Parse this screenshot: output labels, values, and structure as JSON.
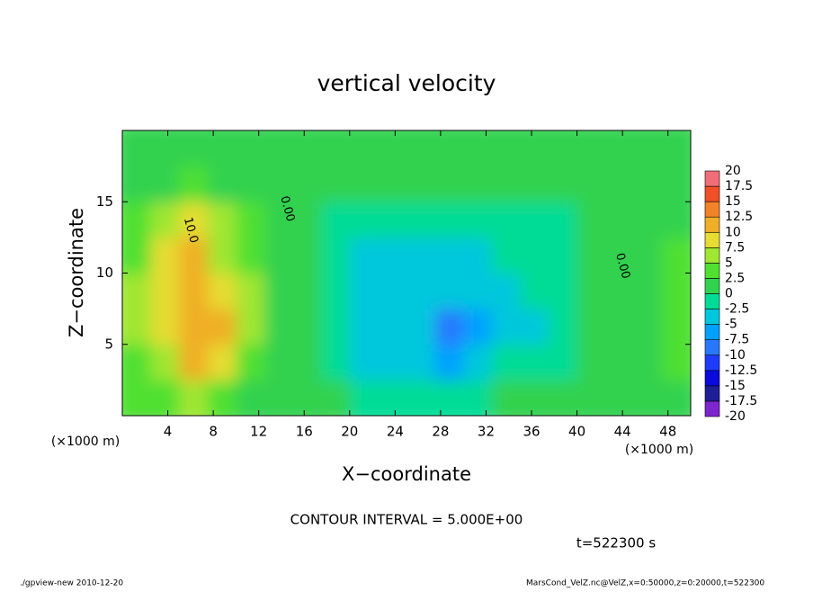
{
  "chart_data": {
    "type": "heatmap",
    "title": "vertical velocity",
    "xlabel": "X−coordinate",
    "ylabel": "Z−coordinate",
    "xunit": "(×1000 m)",
    "yunit": "(×1000 m)",
    "xlim": [
      0,
      50
    ],
    "ylim": [
      0,
      20
    ],
    "xticks": [
      4,
      8,
      12,
      16,
      20,
      24,
      28,
      32,
      36,
      40,
      44,
      48
    ],
    "yticks": [
      5,
      10,
      15
    ],
    "x": [
      1.25,
      3.75,
      6.25,
      8.75,
      11.25,
      13.75,
      16.25,
      18.75,
      21.25,
      23.75,
      26.25,
      28.75,
      31.25,
      33.75,
      36.25,
      38.75,
      41.25,
      43.75,
      46.25,
      48.75
    ],
    "y": [
      1.25,
      3.75,
      6.25,
      8.75,
      11.25,
      13.75,
      16.25,
      18.75
    ],
    "values": [
      [
        3,
        4,
        5,
        4,
        2,
        1,
        0,
        0,
        -1,
        -1,
        -1,
        -2,
        -1,
        0,
        0,
        0,
        1,
        0,
        1,
        1
      ],
      [
        4,
        7,
        10,
        8,
        4,
        2,
        0,
        -1,
        -3,
        -3,
        -3,
        -6,
        -4,
        -2,
        -2,
        -1,
        0,
        0,
        1,
        3
      ],
      [
        6,
        9,
        12,
        10,
        5,
        2,
        0,
        -2,
        -5,
        -4,
        -4,
        -9,
        -6,
        -3,
        -3,
        -2,
        0,
        0,
        2,
        3
      ],
      [
        5,
        8,
        12,
        9,
        5,
        2,
        0,
        -2,
        -5,
        -4,
        -3,
        -5,
        -4,
        -3,
        -2,
        -1,
        0,
        0,
        2,
        3
      ],
      [
        4,
        9,
        12,
        7,
        4,
        2,
        0,
        -2,
        -4,
        -3,
        -3,
        -3,
        -3,
        -2,
        -2,
        -1,
        0,
        0,
        1,
        3
      ],
      [
        3,
        6,
        8,
        5,
        3,
        1,
        0,
        -1,
        -2,
        -2,
        -1,
        -1,
        -1,
        -1,
        -2,
        -1,
        0,
        0,
        0,
        1
      ],
      [
        1,
        2,
        3,
        2,
        1,
        0,
        0,
        0,
        0,
        0,
        0,
        0,
        0,
        0,
        0,
        0,
        0,
        0,
        0,
        0
      ],
      [
        0,
        0,
        0,
        0,
        0,
        0,
        0,
        0,
        0,
        0,
        0,
        0,
        0,
        0,
        0,
        0,
        0,
        0,
        0,
        0
      ]
    ],
    "levels": [
      -20,
      -17.5,
      -15,
      -12.5,
      -10,
      -7.5,
      -5,
      -2.5,
      0,
      2.5,
      5,
      7.5,
      10,
      12.5,
      15,
      17.5,
      20
    ],
    "colors": [
      "#7d26cd",
      "#1e1e96",
      "#0a0adc",
      "#1e3cff",
      "#2878ff",
      "#00a0ff",
      "#00c8dc",
      "#00dc96",
      "#32d250",
      "#50e032",
      "#a0e632",
      "#e6dc32",
      "#f0af28",
      "#f08228",
      "#f05028",
      "#f06e78"
    ],
    "annotations": [
      {
        "text": "10.0",
        "x": 6,
        "y": 13
      },
      {
        "text": "0.00",
        "x": 14.5,
        "y": 14.5
      },
      {
        "text": "0.00",
        "x": 44,
        "y": 10.5
      }
    ],
    "contour_interval_label": "CONTOUR INTERVAL = 5.000E+00",
    "time_label": "t=522300 s",
    "footer_left": "./gpview-new  2010-12-20",
    "footer_right": "MarsCond_VelZ.nc@VelZ,x=0:50000,z=0:20000,t=522300"
  }
}
